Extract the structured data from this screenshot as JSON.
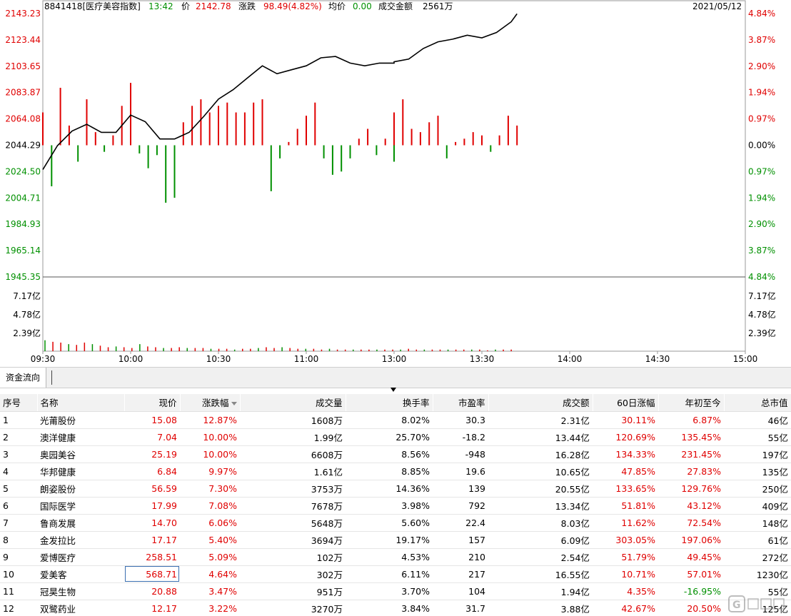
{
  "header": {
    "code": "8841418[医疗美容指数]",
    "time": "13:42",
    "price_label": "价",
    "price": "2142.78",
    "change_label": "涨跌",
    "change": "98.49(4.82%)",
    "avg_label": "均价",
    "avg": "0.00",
    "turnover_label": "成交金额",
    "turnover": "2561万",
    "date": "2021/05/12"
  },
  "colors": {
    "up": "#e00000",
    "down": "#009000",
    "price_line": "#000000",
    "grid": "#d8d8d8"
  },
  "axes": {
    "price_left": [
      "2143.23",
      "2123.44",
      "2103.65",
      "2083.87",
      "2064.08",
      "2044.29",
      "2024.50",
      "2004.71",
      "1984.93",
      "1965.14",
      "1945.35"
    ],
    "pct_right": [
      "4.84%",
      "3.87%",
      "2.90%",
      "1.94%",
      "0.97%",
      "0.00%",
      "0.97%",
      "1.94%",
      "2.90%",
      "3.87%",
      "4.84%"
    ],
    "vol_left": [
      "7.17亿",
      "4.78亿",
      "2.39亿"
    ],
    "vol_right": [
      "7.17亿",
      "4.78亿",
      "2.39亿"
    ],
    "time": [
      "09:30",
      "10:00",
      "10:30",
      "11:00",
      "13:00",
      "13:30",
      "14:00",
      "14:30",
      "15:00"
    ]
  },
  "chart_data": {
    "type": "line",
    "title": "",
    "xlabel": "",
    "ylabel": "",
    "ylim": [
      1945.35,
      2143.23
    ],
    "base_price": 2044.29,
    "x": [
      "09:30",
      "09:35",
      "09:40",
      "09:45",
      "09:50",
      "09:55",
      "10:00",
      "10:05",
      "10:10",
      "10:15",
      "10:20",
      "10:25",
      "10:30",
      "10:35",
      "10:40",
      "10:45",
      "10:50",
      "10:55",
      "11:00",
      "11:05",
      "11:10",
      "11:15",
      "11:20",
      "11:25",
      "11:30",
      "13:00",
      "13:05",
      "13:10",
      "13:15",
      "13:20",
      "13:25",
      "13:30",
      "13:35",
      "13:40",
      "13:42"
    ],
    "series": [
      {
        "values": [
          2026.0,
          2044.0,
          2055.0,
          2060.0,
          2054.0,
          2054.0,
          2067.0,
          2062.0,
          2049.0,
          2049.0,
          2054.0,
          2066.0,
          2079.0,
          2086.0,
          2095.0,
          2104.0,
          2098.0,
          2101.0,
          2104.0,
          2110.0,
          2111.0,
          2106.0,
          2104.0,
          2106.0,
          2106.0,
          2107.0,
          2109.0,
          2117.0,
          2122.0,
          2124.0,
          2127.0,
          2125.0,
          2129.0,
          2137.0,
          2143.0
        ]
      }
    ],
    "money_flow_bars": [
      {
        "x": "09:30",
        "value": 20
      },
      {
        "x": "09:33",
        "value": -25
      },
      {
        "x": "09:36",
        "value": 35
      },
      {
        "x": "09:39",
        "value": 12
      },
      {
        "x": "09:42",
        "value": -10
      },
      {
        "x": "09:45",
        "value": 28
      },
      {
        "x": "09:48",
        "value": 8
      },
      {
        "x": "09:51",
        "value": -4
      },
      {
        "x": "09:54",
        "value": 6
      },
      {
        "x": "09:57",
        "value": 24
      },
      {
        "x": "10:00",
        "value": 38
      },
      {
        "x": "10:03",
        "value": -5
      },
      {
        "x": "10:06",
        "value": -14
      },
      {
        "x": "10:09",
        "value": -6
      },
      {
        "x": "10:12",
        "value": -35
      },
      {
        "x": "10:15",
        "value": -32
      },
      {
        "x": "10:18",
        "value": 14
      },
      {
        "x": "10:21",
        "value": 24
      },
      {
        "x": "10:24",
        "value": 28
      },
      {
        "x": "10:27",
        "value": 20
      },
      {
        "x": "10:30",
        "value": 24
      },
      {
        "x": "10:33",
        "value": 26
      },
      {
        "x": "10:36",
        "value": 20
      },
      {
        "x": "10:39",
        "value": 20
      },
      {
        "x": "10:42",
        "value": 26
      },
      {
        "x": "10:45",
        "value": 28
      },
      {
        "x": "10:48",
        "value": -28
      },
      {
        "x": "10:51",
        "value": -8
      },
      {
        "x": "10:54",
        "value": 2
      },
      {
        "x": "10:57",
        "value": 10
      },
      {
        "x": "11:00",
        "value": 18
      },
      {
        "x": "11:03",
        "value": 26
      },
      {
        "x": "11:06",
        "value": -8
      },
      {
        "x": "11:09",
        "value": -18
      },
      {
        "x": "11:12",
        "value": -16
      },
      {
        "x": "11:15",
        "value": -8
      },
      {
        "x": "11:18",
        "value": 4
      },
      {
        "x": "11:21",
        "value": 10
      },
      {
        "x": "11:24",
        "value": -6
      },
      {
        "x": "11:27",
        "value": 4
      },
      {
        "x": "11:30",
        "value": -10
      },
      {
        "x": "13:00",
        "value": 20
      },
      {
        "x": "13:03",
        "value": 28
      },
      {
        "x": "13:06",
        "value": 10
      },
      {
        "x": "13:09",
        "value": 8
      },
      {
        "x": "13:12",
        "value": 14
      },
      {
        "x": "13:15",
        "value": 18
      },
      {
        "x": "13:18",
        "value": -8
      },
      {
        "x": "13:21",
        "value": 2
      },
      {
        "x": "13:24",
        "value": 4
      },
      {
        "x": "13:27",
        "value": 8
      },
      {
        "x": "13:30",
        "value": 6
      },
      {
        "x": "13:33",
        "value": -4
      },
      {
        "x": "13:36",
        "value": 6
      },
      {
        "x": "13:39",
        "value": 18
      },
      {
        "x": "13:42",
        "value": 12
      }
    ],
    "volume_bars_yi": [
      1.5,
      1.3,
      1.2,
      1.0,
      0.9,
      1.2,
      1.0,
      0.8,
      0.6,
      0.7,
      0.6,
      0.5,
      1.0,
      0.7,
      0.6,
      0.5,
      0.5,
      0.6,
      0.5,
      0.5,
      0.5,
      0.4,
      0.4,
      0.4,
      0.3,
      0.4,
      0.4,
      0.5,
      0.6,
      0.5,
      0.6,
      0.5,
      0.4,
      0.4,
      0.4,
      0.3,
      0.4,
      0.3,
      0.3,
      0.3,
      0.3,
      0.3,
      0.3,
      0.3,
      0.3,
      0.3,
      0.4,
      0.3,
      0.3,
      0.3,
      0.3,
      0.3,
      0.3,
      0.3,
      0.3,
      0.3,
      0.2,
      0.3,
      0.3,
      0.3
    ]
  },
  "tabs": [
    {
      "label": "资金流向"
    }
  ],
  "table": {
    "headers": [
      "序号",
      "名称",
      "现价",
      "涨跌幅",
      "成交量",
      "换手率",
      "市盈率",
      "成交额",
      "60日涨幅",
      "年初至今",
      "总市值"
    ],
    "rows": [
      [
        "1",
        "光莆股份",
        "15.08",
        "12.87%",
        "1608万",
        "8.02%",
        "30.3",
        "2.31亿",
        "30.11%",
        "6.87%",
        "46亿"
      ],
      [
        "2",
        "澳洋健康",
        "7.04",
        "10.00%",
        "1.99亿",
        "25.70%",
        "-18.2",
        "13.44亿",
        "120.69%",
        "135.45%",
        "55亿"
      ],
      [
        "3",
        "奥园美谷",
        "25.19",
        "10.00%",
        "6608万",
        "8.56%",
        "-948",
        "16.28亿",
        "134.33%",
        "231.45%",
        "197亿"
      ],
      [
        "4",
        "华邦健康",
        "6.84",
        "9.97%",
        "1.61亿",
        "8.85%",
        "19.6",
        "10.65亿",
        "47.85%",
        "27.83%",
        "135亿"
      ],
      [
        "5",
        "朗姿股份",
        "56.59",
        "7.30%",
        "3753万",
        "14.36%",
        "139",
        "20.55亿",
        "133.65%",
        "129.76%",
        "250亿"
      ],
      [
        "6",
        "国际医学",
        "17.99",
        "7.08%",
        "7678万",
        "3.98%",
        "792",
        "13.34亿",
        "51.81%",
        "43.12%",
        "409亿"
      ],
      [
        "7",
        "鲁商发展",
        "14.70",
        "6.06%",
        "5648万",
        "5.60%",
        "22.4",
        "8.03亿",
        "11.62%",
        "72.54%",
        "148亿"
      ],
      [
        "8",
        "金发拉比",
        "17.17",
        "5.40%",
        "3694万",
        "19.17%",
        "157",
        "6.09亿",
        "303.05%",
        "197.06%",
        "61亿"
      ],
      [
        "9",
        "爱博医疗",
        "258.51",
        "5.09%",
        "102万",
        "4.53%",
        "210",
        "2.54亿",
        "51.79%",
        "49.45%",
        "272亿"
      ],
      [
        "10",
        "爱美客",
        "568.71",
        "4.64%",
        "302万",
        "6.11%",
        "217",
        "16.55亿",
        "10.71%",
        "57.01%",
        "1230亿"
      ],
      [
        "11",
        "冠昊生物",
        "20.88",
        "3.47%",
        "951万",
        "3.70%",
        "104",
        "1.94亿",
        "4.35%",
        "-16.95%",
        "55亿"
      ],
      [
        "12",
        "双鹭药业",
        "12.17",
        "3.22%",
        "3270万",
        "3.84%",
        "31.7",
        "3.88亿",
        "42.67%",
        "20.50%",
        "125亿"
      ]
    ]
  },
  "watermark": {
    "icon": "gelonghui-logo-icon"
  }
}
